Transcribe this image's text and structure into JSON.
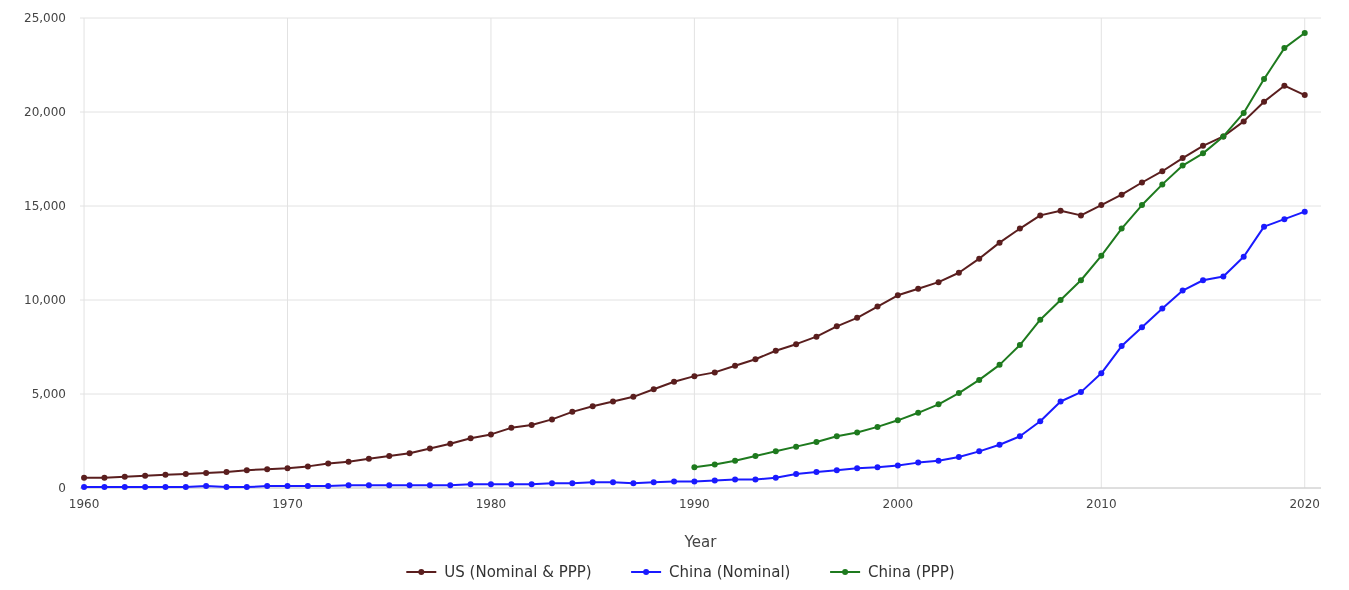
{
  "chart_data": {
    "type": "line",
    "xlabel": "Year",
    "xlim": [
      1959.8,
      2020.8
    ],
    "xticks": [
      1960,
      1970,
      1980,
      1990,
      2000,
      2010,
      2020
    ],
    "ylim": [
      0,
      25000
    ],
    "yticks": [
      {
        "value": 0,
        "label": "0"
      },
      {
        "value": 5000,
        "label": "5,000"
      },
      {
        "value": 10000,
        "label": "10,000"
      },
      {
        "value": 15000,
        "label": "15,000"
      },
      {
        "value": 20000,
        "label": "20,000"
      },
      {
        "value": 25000,
        "label": "25,000"
      }
    ],
    "grid": true,
    "legend": "bottom",
    "marker": "circle",
    "line_style": "solid",
    "series": [
      {
        "name": "US (Nominal & PPP)",
        "color": "#5a1e1e",
        "x": [
          1960,
          1961,
          1962,
          1963,
          1964,
          1965,
          1966,
          1967,
          1968,
          1969,
          1970,
          1971,
          1972,
          1973,
          1974,
          1975,
          1976,
          1977,
          1978,
          1979,
          1980,
          1981,
          1982,
          1983,
          1984,
          1985,
          1986,
          1987,
          1988,
          1989,
          1990,
          1991,
          1992,
          1993,
          1994,
          1995,
          1996,
          1997,
          1998,
          1999,
          2000,
          2001,
          2002,
          2003,
          2004,
          2005,
          2006,
          2007,
          2008,
          2009,
          2010,
          2011,
          2012,
          2013,
          2014,
          2015,
          2016,
          2017,
          2018,
          2019,
          2020
        ],
        "values": [
          550,
          550,
          600,
          650,
          700,
          750,
          800,
          850,
          950,
          1000,
          1050,
          1150,
          1300,
          1400,
          1550,
          1700,
          1850,
          2100,
          2350,
          2650,
          2850,
          3200,
          3350,
          3650,
          4050,
          4350,
          4600,
          4850,
          5250,
          5650,
          5950,
          6150,
          6500,
          6850,
          7300,
          7650,
          8050,
          8600,
          9050,
          9650,
          10250,
          10600,
          10950,
          11450,
          12200,
          13050,
          13800,
          14500,
          14750,
          14500,
          15050,
          15600,
          16250,
          16850,
          17550,
          18200,
          18700,
          19500,
          20550,
          21400,
          20900
        ]
      },
      {
        "name": "China (Nominal)",
        "color": "#1a1aff",
        "x": [
          1960,
          1961,
          1962,
          1963,
          1964,
          1965,
          1966,
          1967,
          1968,
          1969,
          1970,
          1971,
          1972,
          1973,
          1974,
          1975,
          1976,
          1977,
          1978,
          1979,
          1980,
          1981,
          1982,
          1983,
          1984,
          1985,
          1986,
          1987,
          1988,
          1989,
          1990,
          1991,
          1992,
          1993,
          1994,
          1995,
          1996,
          1997,
          1998,
          1999,
          2000,
          2001,
          2002,
          2003,
          2004,
          2005,
          2006,
          2007,
          2008,
          2009,
          2010,
          2011,
          2012,
          2013,
          2014,
          2015,
          2016,
          2017,
          2018,
          2019,
          2020
        ],
        "values": [
          50,
          50,
          50,
          50,
          50,
          50,
          100,
          50,
          50,
          100,
          100,
          100,
          100,
          150,
          150,
          150,
          150,
          150,
          150,
          200,
          200,
          200,
          200,
          250,
          250,
          300,
          300,
          250,
          300,
          350,
          350,
          400,
          450,
          450,
          550,
          750,
          850,
          950,
          1050,
          1100,
          1200,
          1350,
          1450,
          1650,
          1950,
          2300,
          2750,
          3550,
          4600,
          5100,
          6100,
          7550,
          8550,
          9550,
          10500,
          11050,
          11250,
          12300,
          13900,
          14300,
          14700
        ]
      },
      {
        "name": "China (PPP)",
        "color": "#1e7a1e",
        "x": [
          1990,
          1991,
          1992,
          1993,
          1994,
          1995,
          1996,
          1997,
          1998,
          1999,
          2000,
          2001,
          2002,
          2003,
          2004,
          2005,
          2006,
          2007,
          2008,
          2009,
          2010,
          2011,
          2012,
          2013,
          2014,
          2015,
          2016,
          2017,
          2018,
          2019,
          2020
        ],
        "values": [
          1100,
          1250,
          1450,
          1700,
          1950,
          2200,
          2450,
          2750,
          2950,
          3250,
          3600,
          4000,
          4450,
          5050,
          5750,
          6550,
          7600,
          8950,
          10000,
          11050,
          12350,
          13800,
          15050,
          16150,
          17150,
          17800,
          18700,
          19950,
          21750,
          23400,
          24200
        ]
      }
    ]
  }
}
